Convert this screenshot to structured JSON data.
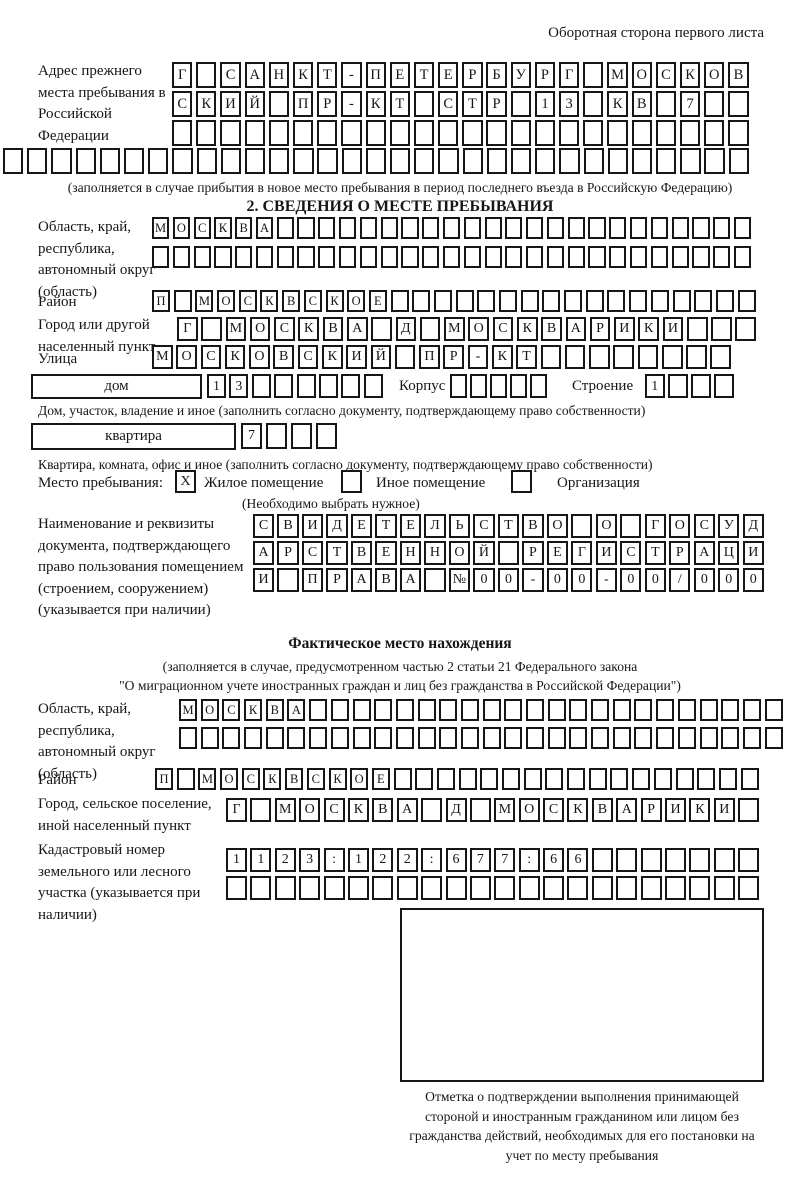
{
  "header": {
    "title": "Оборотная сторона первого листа"
  },
  "prev_address": {
    "label": "Адрес прежнего места пребывания в Российской Федерации",
    "rows": [
      {
        "chars": "Г САНКТ-ПЕТЕРБУРГ МОСКОВ",
        "n": 24
      },
      {
        "chars": "СКИЙ ПР-КТ СТР 13 КВ 7",
        "n": 24
      },
      {
        "chars": "",
        "n": 24
      }
    ],
    "row_full": {
      "chars": "",
      "n": 31
    },
    "caption": "(заполняется в случае прибытия в новое место пребывания в период последнего въезда в Российскую Федерацию)"
  },
  "section2": {
    "title": "2. СВЕДЕНИЯ О МЕСТЕ ПРЕБЫВАНИЯ",
    "region_label": "Область, край, республика, автономный округ (область)",
    "region_rows": [
      {
        "chars": "МОСКВА",
        "n": 29
      },
      {
        "chars": "",
        "n": 29
      }
    ],
    "district_label": "Район",
    "district_row": {
      "chars": "П МОСКВСКОЕ",
      "n": 28
    },
    "city_label": "Город или другой населенный пункт",
    "city_row": {
      "chars": "Г МОСКВА Д МОСКВАРИКИ",
      "n": 24
    },
    "street_label": "Улица",
    "street_row": {
      "chars": "МОСКОВСКИЙ ПР-КТ",
      "n": 24
    },
    "house": {
      "box_label": "дом",
      "cells": {
        "chars": "13",
        "n": 8
      },
      "corpus_label": "Корпус",
      "corpus_cells": {
        "chars": "",
        "n": 5
      },
      "stroenie_label": "Строение",
      "stroenie_cells": {
        "chars": "1",
        "n": 4
      },
      "caption": "Дом, участок, владение и иное (заполнить согласно документу, подтверждающему право собственности)"
    },
    "apartment": {
      "box_label": "квартира",
      "cells": {
        "chars": "7",
        "n": 4
      },
      "caption": "Квартира, комната, офис и иное (заполнить согласно документу, подтверждающему право собственности)"
    },
    "stay_type": {
      "label": "Место пребывания:",
      "options": [
        {
          "label": "Жилое помещение",
          "mark": "X"
        },
        {
          "label": "Иное помещение",
          "mark": ""
        },
        {
          "label": "Организация",
          "mark": ""
        }
      ],
      "caption": "(Необходимо выбрать нужное)"
    },
    "document": {
      "label": "Наименование и реквизиты документа, подтверждающего право пользования помещением (строением, сооружением) (указывается при наличии)",
      "rows": [
        {
          "chars": "СВИДЕТЕЛЬСТВО О ГОСУД",
          "n": 21
        },
        {
          "chars": "АРСТВЕННОЙ РЕГИСТРАЦИ",
          "n": 21
        },
        {
          "chars": "И ПРАВА №00-00-00/000",
          "n": 21
        }
      ]
    }
  },
  "actual_location": {
    "title": "Фактическое место нахождения",
    "caption_line1": "(заполняется в случае, предусмотренном частью 2 статьи 21 Федерального закона",
    "caption_line2": "\"О миграционном учете иностранных граждан и лиц без гражданства в Российской Федерации\")",
    "region_label": "Область, край, республика, автономный округ (область)",
    "region_rows": [
      {
        "chars": "МОСКВА",
        "n": 28
      },
      {
        "chars": "",
        "n": 28
      }
    ],
    "district_label": "Район",
    "district_row": {
      "chars": "П МОСКВСКОЕ",
      "n": 28
    },
    "city_label": "Город, сельское поселение, иной населенный пункт",
    "city_row": {
      "chars": "Г МОСКВА Д МОСКВАРИКИ",
      "n": 22
    },
    "cadastre_label": "Кадастровый номер земельного или лесного участка (указывается при наличии)",
    "cadastre_rows": [
      {
        "chars": "1123:122:677:66",
        "n": 22
      },
      {
        "chars": "",
        "n": 22
      }
    ]
  },
  "stamp": {
    "caption": "Отметка о подтверждении выполнения принимающей стороной и иностранным гражданином или лицом без гражданства действий, необходимых для его постановки на учет по месту пребывания"
  }
}
